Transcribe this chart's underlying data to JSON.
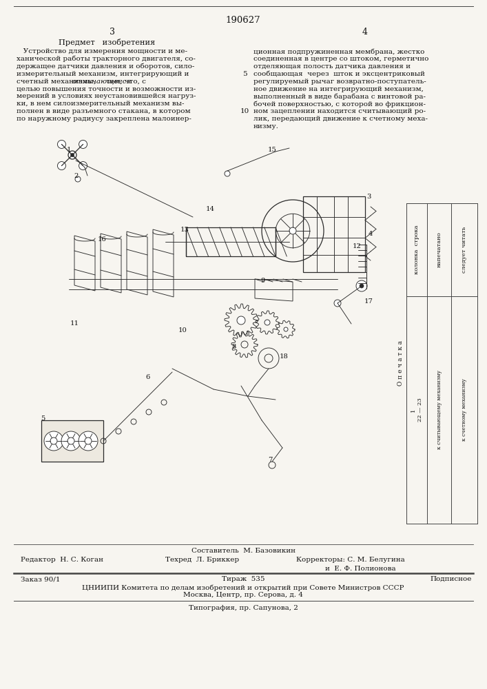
{
  "patent_number": "190627",
  "page_left": "3",
  "page_right": "4",
  "section_title": "Предмет   изобретения",
  "left_lines": [
    "   Устройство для измерения мощности и ме-",
    "ханической работы тракторного двигателя, со-",
    "держащее датчики давления и оборотов, сило-",
    "измерительный механизм, интегрирующий и",
    "счетный механизмы, ",
    "целью повышения точности и возможности из-",
    "мерений в условиях неустановившейся нагруз-",
    "ки, в нем силоизмерительный механизм вы-",
    "полнен в виде разъемного стакана, в котором",
    "по наружному радиусу закреплена малоинер-"
  ],
  "italic_line_idx": 4,
  "italic_prefix": "счетный механизмы, ",
  "italic_word": "отличающееся",
  "italic_suffix": " тем, что, с",
  "line_5_prefix": "целью повышения точности и возможности из-",
  "right_lines": [
    "ционная подпружиненная мембрана, жестко",
    "соединенная в центре со штоком, герметично",
    "отделяющая полость датчика давления и",
    "сообщающая  через  шток и эксцентриковый",
    "регулируемый рычаг возвратно-поступатель-",
    "ное движение на интегрирующий механизм,",
    "выполненный в виде барабана с винтовой ра-",
    "бочей поверхностью, с которой во фрикцион-",
    "ном зацеплении находится считывающий ро-",
    "лик, передающий движение к счетному меха-",
    "низму."
  ],
  "line_num_5": "5",
  "line_num_10": "10",
  "errata_title": "О п е ч а т к а",
  "errata_col_header": "колонка  строка",
  "errata_printed": "напечатано",
  "errata_should_read": "следует читать",
  "errata_col1": "1",
  "errata_row1": "22 — 23",
  "errata_printed1": "к считывающему механизму",
  "errata_read1": "к счетному механизму",
  "compiler_label": "Составитель  М. Базовикин",
  "editor_label": "Редактор  Н. С. Коган",
  "tech_editor_label": "Техред  Л. Бриккер",
  "corrector_label": "Корректоры: С. М. Белугина",
  "corrector_label2": "и  Е. Ф. Полионова",
  "order_label": "Заказ 90/1",
  "tirazh_label": "Тираж  535",
  "podpisnoe_label": "Подписное",
  "cniip_label": "ЦНИИПИ Комитета по делам изобретений и открытий при Совете Министров СССР",
  "moscow_label": "Москва, Центр, пр. Серова, д. 4",
  "tipog_label": "Типография, пр. Сапунова, 2",
  "bg_color": "#f7f5f0",
  "text_color": "#111111",
  "line_color": "#444444",
  "diagram_color": "#2a2a2a"
}
